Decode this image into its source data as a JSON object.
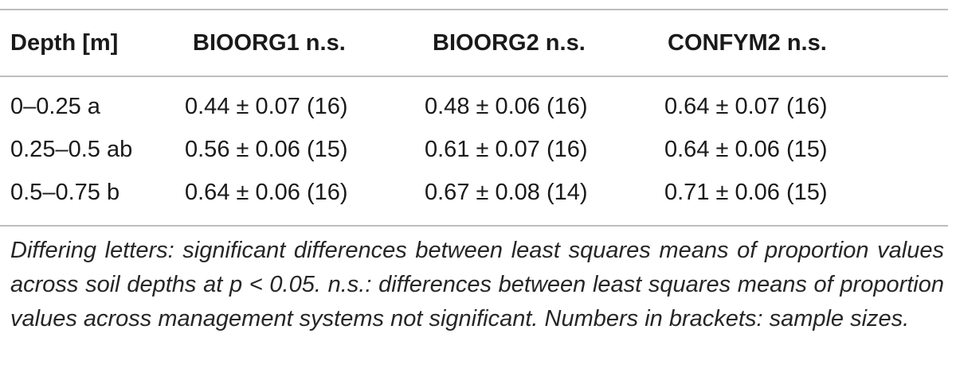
{
  "table": {
    "headers": [
      "Depth [m]",
      "BIOORG1 n.s.",
      "BIOORG2 n.s.",
      "CONFYM2 n.s."
    ],
    "rows": [
      [
        "0–0.25 a",
        "0.44 ± 0.07 (16)",
        "0.48 ± 0.06 (16)",
        "0.64 ± 0.07 (16)"
      ],
      [
        "0.25–0.5 ab",
        "0.56 ± 0.06 (15)",
        "0.61 ± 0.07 (16)",
        "0.64 ± 0.06 (15)"
      ],
      [
        "0.5–0.75 b",
        "0.64 ± 0.06 (16)",
        "0.67 ± 0.08 (14)",
        "0.71 ± 0.06 (15)"
      ]
    ]
  },
  "footnote": "Differing letters: significant differences between least squares means of proportion values across soil depths at p < 0.05. n.s.: differences between least squares means of proportion values across management systems not significant. Numbers in brackets: sample sizes."
}
